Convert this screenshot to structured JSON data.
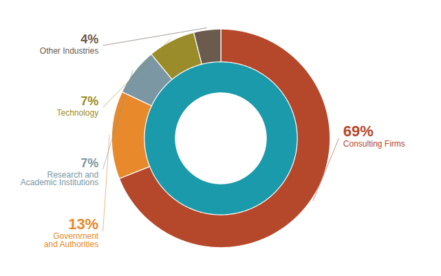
{
  "chart_data": {
    "type": "pie",
    "categories": [
      "Consulting Firms",
      "Government\nand Authorities",
      "Research and\nAcademic Institutions",
      "Technology",
      "Other Industries"
    ],
    "values": [
      69,
      13,
      7,
      7,
      4
    ],
    "value_labels": [
      "69%",
      "13%",
      "7%",
      "7%",
      "4%"
    ],
    "colors": [
      "#b5472a",
      "#e8892b",
      "#7a97a3",
      "#9a8c2a",
      "#6b5b4e"
    ],
    "data_labels": true
  }
}
